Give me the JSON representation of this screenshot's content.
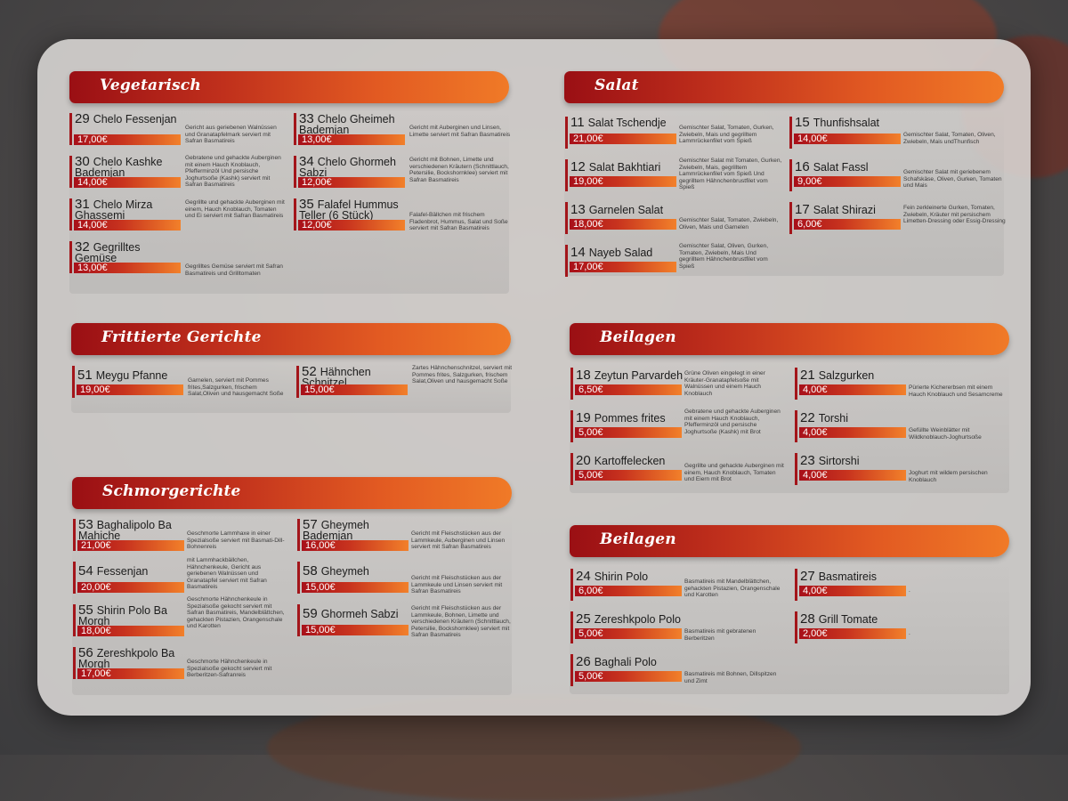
{
  "sections": {
    "vegetarisch": {
      "title": "Vegetarisch",
      "items": [
        {
          "num": "29",
          "name": "Chelo Fessenjan",
          "price": "17,00€",
          "desc": "Gericht aus geriebenen Walnüssen und Granatapfelmark serviert mit Safran Basmatireis"
        },
        {
          "num": "30",
          "name": "Chelo Kashke Bademjan",
          "price": "14,00€",
          "desc": "Gebratene und gehackte Auberginen mit einem Hauch Knoblauch, Pfefferminzöl Und persische Joghurtsoße (Kashk) serviert mit Safran Basmatireis"
        },
        {
          "num": "31",
          "name": "Chelo Mirza Ghassemi",
          "price": "14,00€",
          "desc": "Gegrillte und gehackte Auberginen mit einem, Hauch Knoblauch, Tomaten und Ei serviert mit Safran Basmatireis"
        },
        {
          "num": "32",
          "name": "Gegrilltes Gemüse",
          "price": "13,00€",
          "desc": "Gegrilltes Gemüse serviert mit Safran Basmatireis und Grilltomaten"
        },
        {
          "num": "33",
          "name": "Chelo Gheimeh Bademjan",
          "price": "13,00€",
          "desc": "Gericht mit Auberginen und Linsen, Limette serviert mit Safran Basmatireis"
        },
        {
          "num": "34",
          "name": "Chelo Ghormeh Sabzi",
          "price": "12,00€",
          "desc": "Gericht mit Bohnen, Limette und verschiedenen Kräutern (Schnittlauch, Petersilie, Bockshornklee) serviert mit Safran Basmatireis"
        },
        {
          "num": "35",
          "name": "Falafel Hummus Teller (6 Stück)",
          "price": "12,00€",
          "desc": "Falafel-Bällchen mit frischem Fladenbrot, Hummus, Salat und Soße serviert mit Safran Basmatireis"
        }
      ]
    },
    "frittierte": {
      "title": "Frittierte Gerichte",
      "items": [
        {
          "num": "51",
          "name": "Meygu Pfanne",
          "price": "19,00€",
          "desc": "Garnelen, serviert mit Pommes frites,Salzgurken, frischem Salat,Oliven und hausgemacht Soße"
        },
        {
          "num": "52",
          "name": "Hähnchen Schnitzel",
          "price": "15,00€",
          "desc": "Zartes Hähnchenschnitzel, serviert mit Pommes frites, Salzgurken, frischem Salat,Oliven und hausgemacht Soße"
        }
      ]
    },
    "schmor": {
      "title": "Schmorgerichte",
      "items": [
        {
          "num": "53",
          "name": "Baghalipolo Ba Mahiche",
          "price": "21,00€",
          "desc": "Geschmorte Lammhaxe in einer Spezialsoße serviert mit Basmati-Dill-Bohnenreis"
        },
        {
          "num": "54",
          "name": "Fessenjan",
          "price": "20,00€",
          "desc": "mit Lammhackbällchen, Hähnchenkeule, Gericht aus geriebenen Walnüssen und Granatapfel serviert mit Safran Basmatireis"
        },
        {
          "num": "55",
          "name": "Shirin Polo Ba Morgh",
          "price": "18,00€",
          "desc": "Geschmorte Hähnchenkeule in Spezialsoße gekocht serviert mit Safran Basmatireis, Mandelblättchen, gehackten Pistazien, Orangenschale und Karotten"
        },
        {
          "num": "56",
          "name": "Zereshkpolo Ba Morgh",
          "price": "17,00€",
          "desc": "Geschmorte Hähnchenkeule in Spezialsoße gekocht serviert mit Berberitzen-Safranreis"
        },
        {
          "num": "57",
          "name": "Gheymeh Bademjan",
          "price": "16,00€",
          "desc": "Gericht mit Fleischstücken aus der Lammkeule, Auberginen und Linsen serviert mit Safran Basmatireis"
        },
        {
          "num": "58",
          "name": "Gheymeh",
          "price": "15,00€",
          "desc": "Gericht mit Fleischstücken aus der Lammkeule und Linsen serviert mit Safran Basmatireis"
        },
        {
          "num": "59",
          "name": "Ghormeh Sabzi",
          "price": "15,00€",
          "desc": "Gericht mit Fleischstücken aus der Lammkeule, Bohnen, Limette und verschiedenen Kräutern (Schnittlauch, Petersilie, Bockshornklee) serviert mit Safran Basmatireis"
        }
      ]
    },
    "salat": {
      "title": "Salat",
      "items": [
        {
          "num": "11",
          "name": "Salat Tschendje",
          "price": "21,00€",
          "desc": "Gemischter Salat, Tomaten, Gurken, Zwiebeln, Mais und gegrilltem Lammrückenfilet vom Spieß"
        },
        {
          "num": "12",
          "name": "Salat Bakhtiari",
          "price": "19,00€",
          "desc": "Gemischter Salat mit Tomaten, Gurken, Zwiebeln, Mais, gegrilltem Lammrückenfilet vom Spieß Und gegrilltem Hähnchenbrustfilet vom Spieß"
        },
        {
          "num": "13",
          "name": "Garnelen Salat",
          "price": "18,00€",
          "desc": "Gemischter Salat, Tomaten, Zwiebeln, Oliven, Mais und Garnelen"
        },
        {
          "num": "14",
          "name": "Nayeb Salad",
          "price": "17,00€",
          "desc": "Gemischter Salat, Oliven, Gurken, Tomaten, Zwiebeln, Mais Und gegrilltem Hähnchenbrustfilet vom Spieß"
        },
        {
          "num": "15",
          "name": "Thunfishsalat",
          "price": "14,00€",
          "desc": "Gemischter Salat, Tomaten, Oliven, Zwiebeln, Mais undThunfisch"
        },
        {
          "num": "16",
          "name": "Salat Fassl",
          "price": "9,00€",
          "desc": "Gemischter Salat mit geriebenem Schafskäse, Oliven, Gurken, Tomaten und Mais"
        },
        {
          "num": "17",
          "name": "Salat Shirazi",
          "price": "6,00€",
          "desc": "Fein zerkleinerte Gurken, Tomaten, Zwiebeln, Kräuter mit persischem Limetten-Dressing oder Essig-Dressing"
        }
      ]
    },
    "beilagen1": {
      "title": "Beilagen",
      "items": [
        {
          "num": "18",
          "name": "Zeytun Parvardeh",
          "price": "6,50€",
          "desc": "Grüne Oliven eingelegt in einer Kräuter-Granatapfelsoße mit Walnüssen und einem Hauch Knoblauch"
        },
        {
          "num": "19",
          "name": "Pommes frites",
          "price": "5,00€",
          "desc": "Gebratene und gehackte Auberginen mit einem Hauch Knoblauch, Pfefferminzöl und persische Joghurtsoße (Kashk) mit Brot"
        },
        {
          "num": "20",
          "name": "Kartoffelecken",
          "price": "5,00€",
          "desc": "Gegrillte und gehackte Auberginen mit einem, Hauch Knoblauch, Tomaten und Eiern mit Brot"
        },
        {
          "num": "21",
          "name": "Salzgurken",
          "price": "4,00€",
          "desc": "Pürierte Kichererbsen mit einem Hauch Knoblauch und Sesamcreme"
        },
        {
          "num": "22",
          "name": "Torshi",
          "price": "4,00€",
          "desc": "Gefüllte Weinblätter mit Wildknoblauch-Joghurtsoße"
        },
        {
          "num": "23",
          "name": "Sirtorshi",
          "price": "4,00€",
          "desc": "Joghurt mit wildem persischen Knoblauch"
        }
      ]
    },
    "beilagen2": {
      "title": "Beilagen",
      "items": [
        {
          "num": "24",
          "name": "Shirin Polo",
          "price": "6,00€",
          "desc": "Basmatireis mit Mandelblättchen, gehackten Pistazien, Orangenschale und Karotten"
        },
        {
          "num": "25",
          "name": "Zereshkpolo Polo",
          "price": "5,00€",
          "desc": "Basmatireis mit gebratenen Berberitzen"
        },
        {
          "num": "26",
          "name": "Baghali Polo",
          "price": "5,00€",
          "desc": "Basmatireis mit Bohnen, Dillspitzen und Zimt"
        },
        {
          "num": "27",
          "name": "Basmatireis",
          "price": "4,00€",
          "desc": "."
        },
        {
          "num": "28",
          "name": "Grill Tomate",
          "price": "2,00€",
          "desc": "."
        }
      ]
    }
  }
}
